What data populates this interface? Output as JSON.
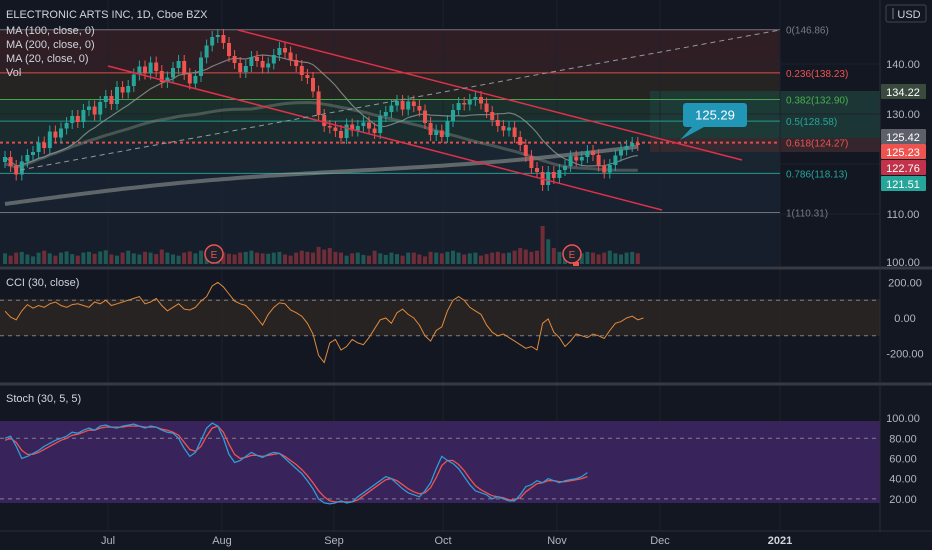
{
  "header": {
    "symbol_line": "ELECTRONIC ARTS INC, 1D, Cboe BZX",
    "indicators": [
      "MA (100, close, 0)",
      "MA (200, close, 0)",
      "MA (20, close, 0)",
      "Vol"
    ],
    "currency": "USD"
  },
  "colors": {
    "up": "#26a69a",
    "down": "#ef5350",
    "ma_long": "#9aa09a",
    "ma_mid": "#7a7f7a",
    "channel": "#e0304a",
    "cci": "#e08a3c",
    "stoch_k": "#2f9bd6",
    "stoch_d": "#ef5350",
    "stoch_band": "#4a2a7a",
    "tooltip": "#2196b6"
  },
  "chart_data": [
    {
      "type": "candlestick",
      "title": "ELECTRONIC ARTS INC, 1D, Cboe BZX",
      "x_tick_labels": [
        "Jul",
        "Aug",
        "Sep",
        "Oct",
        "Nov",
        "Dec",
        "2021"
      ],
      "y_tick_labels": [
        "140.00",
        "130.00",
        "120.00",
        "110.00",
        "100.00"
      ],
      "ylim": [
        100,
        148
      ],
      "closes": [
        121.4,
        119.6,
        117.9,
        120.5,
        121.8,
        122.4,
        124.3,
        123.2,
        126.5,
        125.3,
        127.1,
        128.2,
        129.6,
        128.4,
        130.8,
        131.5,
        129.9,
        132.4,
        133.6,
        132.0,
        135.4,
        134.3,
        135.6,
        137.9,
        139.5,
        138.1,
        140.3,
        138.6,
        136.4,
        137.3,
        139.2,
        140.6,
        138.0,
        136.1,
        137.6,
        141.3,
        143.7,
        145.4,
        145.8,
        144.2,
        141.6,
        140.2,
        138.4,
        139.6,
        141.4,
        140.6,
        139.3,
        140.1,
        141.8,
        143.2,
        142.3,
        140.8,
        139.6,
        137.8,
        137.2,
        134.5,
        129.8,
        127.6,
        127.3,
        126.6,
        125.2,
        127.9,
        126.7,
        127.6,
        128.3,
        127.1,
        126.2,
        129.6,
        130.4,
        131.7,
        132.6,
        130.9,
        132.5,
        131.6,
        130.7,
        128.2,
        125.8,
        126.7,
        125.4,
        128.6,
        130.8,
        132.2,
        131.9,
        132.8,
        133.4,
        132.1,
        130.4,
        128.8,
        127.6,
        126.7,
        127.3,
        125.4,
        123.8,
        121.6,
        119.2,
        118.4,
        115.8,
        118.4,
        117.2,
        118.8,
        119.6,
        121.5,
        120.7,
        121.4,
        122.6,
        121.8,
        119.7,
        118.3,
        119.8,
        121.7,
        122.9,
        123.6,
        124.2,
        123.8
      ],
      "volume_relative": [
        0.28,
        0.22,
        0.3,
        0.32,
        0.25,
        0.2,
        0.3,
        0.35,
        0.28,
        0.22,
        0.3,
        0.33,
        0.26,
        0.22,
        0.3,
        0.32,
        0.27,
        0.33,
        0.36,
        0.25,
        0.22,
        0.3,
        0.35,
        0.28,
        0.25,
        0.32,
        0.3,
        0.26,
        0.38,
        0.3,
        0.25,
        0.22,
        0.3,
        0.33,
        0.28,
        0.35,
        0.3,
        0.32,
        0.38,
        0.3,
        0.27,
        0.25,
        0.3,
        0.32,
        0.35,
        0.3,
        0.28,
        0.27,
        0.3,
        0.32,
        0.25,
        0.22,
        0.3,
        0.35,
        0.32,
        0.3,
        0.45,
        0.38,
        0.42,
        0.32,
        0.3,
        0.22,
        0.28,
        0.3,
        0.24,
        0.22,
        0.35,
        0.28,
        0.24,
        0.3,
        0.26,
        0.22,
        0.3,
        0.3,
        0.25,
        0.2,
        0.32,
        0.3,
        0.28,
        0.32,
        0.35,
        0.3,
        0.25,
        0.28,
        0.3,
        0.22,
        0.26,
        0.3,
        0.32,
        0.28,
        0.3,
        0.35,
        0.42,
        0.38,
        0.32,
        0.35,
        1.0,
        0.65,
        0.42,
        0.32,
        0.35,
        0.25,
        0.3,
        0.28,
        0.32,
        0.3,
        0.25,
        0.3,
        0.35,
        0.28,
        0.25,
        0.3,
        0.32,
        0.28
      ],
      "earnings_markers": [
        "E",
        "E"
      ],
      "fibonacci": [
        {
          "label": "0(146.86)",
          "value": 146.86
        },
        {
          "label": "0.236(138.23)",
          "value": 138.23
        },
        {
          "label": "0.382(132.90)",
          "value": 132.9
        },
        {
          "label": "0.5(128.58)",
          "value": 128.58
        },
        {
          "label": "0.618(124.27)",
          "value": 124.27
        },
        {
          "label": "0.786(118.13)",
          "value": 118.13
        },
        {
          "label": "1(110.31)",
          "value": 110.31
        }
      ],
      "price_labels": [
        {
          "text": "134.22",
          "value": 134.22,
          "bg": "#3a4a3e"
        },
        {
          "text": "125.42",
          "value": 125.42,
          "bg": "#5d606b"
        },
        {
          "text": "125.23",
          "value": 125.23,
          "bg": "#ef5350"
        },
        {
          "text": "122.76",
          "value": 122.76,
          "bg": "#c2324a"
        },
        {
          "text": "121.51",
          "value": 121.51,
          "bg": "#26a69a"
        }
      ],
      "annotation": "125.29"
    },
    {
      "type": "line",
      "title": "CCI (30, close)",
      "y_tick_labels": [
        "200.00",
        "0.00",
        "-200.00"
      ],
      "ylim": [
        -280,
        220
      ],
      "bands": [
        100,
        -100
      ],
      "values": [
        38,
        5,
        -10,
        40,
        75,
        55,
        70,
        60,
        80,
        90,
        70,
        60,
        75,
        80,
        70,
        60,
        90,
        80,
        100,
        70,
        80,
        90,
        100,
        110,
        120,
        80,
        90,
        110,
        70,
        40,
        60,
        80,
        50,
        45,
        60,
        95,
        120,
        180,
        200,
        175,
        135,
        95,
        80,
        70,
        40,
        0,
        -40,
        20,
        60,
        85,
        80,
        45,
        30,
        10,
        -30,
        -90,
        -210,
        -250,
        -140,
        -120,
        -180,
        -160,
        -120,
        -140,
        -150,
        -110,
        -60,
        -10,
        0,
        -30,
        30,
        50,
        20,
        0,
        -40,
        -100,
        -130,
        -70,
        -50,
        40,
        100,
        120,
        100,
        60,
        40,
        20,
        -40,
        -80,
        -100,
        -90,
        -110,
        -130,
        -150,
        -170,
        -160,
        -180,
        -30,
        -5,
        -80,
        -110,
        -160,
        -130,
        -90,
        -100,
        -110,
        -90,
        -100,
        -115,
        -70,
        -30,
        -20,
        0,
        10,
        -10,
        0
      ]
    },
    {
      "type": "line",
      "title": "Stoch (30, 5, 5)",
      "y_tick_labels": [
        "100.00",
        "80.00",
        "60.00",
        "40.00",
        "20.00"
      ],
      "ylim": [
        5,
        105
      ],
      "bands": [
        80,
        20
      ],
      "series": [
        {
          "values": [
            80,
            82,
            72,
            60,
            62,
            65,
            68,
            72,
            75,
            78,
            80,
            82,
            86,
            85,
            88,
            90,
            88,
            92,
            93,
            91,
            90,
            92,
            93,
            94,
            92,
            90,
            92,
            91,
            88,
            86,
            85,
            80,
            70,
            62,
            66,
            78,
            90,
            95,
            92,
            80,
            64,
            56,
            58,
            62,
            66,
            63,
            61,
            64,
            66,
            65,
            60,
            55,
            50,
            45,
            38,
            30,
            20,
            16,
            15,
            16,
            18,
            16,
            17,
            22,
            26,
            30,
            34,
            38,
            42,
            40,
            35,
            30,
            26,
            24,
            22,
            28,
            36,
            50,
            62,
            58,
            55,
            50,
            42,
            34,
            28,
            26,
            24,
            20,
            22,
            20,
            18,
            18,
            24,
            32,
            34,
            38,
            36,
            40,
            38,
            36,
            38,
            39,
            40,
            42,
            46
          ]
        },
        {
          "values": [
            78,
            80,
            76,
            68,
            64,
            64,
            66,
            69,
            72,
            75,
            78,
            80,
            83,
            84,
            86,
            88,
            88,
            90,
            91,
            91,
            91,
            91,
            92,
            92,
            92,
            91,
            91,
            91,
            89,
            88,
            86,
            83,
            76,
            69,
            67,
            72,
            82,
            90,
            92,
            86,
            74,
            64,
            60,
            61,
            63,
            63,
            62,
            63,
            64,
            65,
            62,
            58,
            54,
            49,
            43,
            36,
            28,
            22,
            18,
            17,
            17,
            17,
            17,
            19,
            23,
            27,
            31,
            35,
            39,
            40,
            38,
            34,
            30,
            27,
            25,
            26,
            31,
            41,
            53,
            58,
            58,
            54,
            48,
            40,
            33,
            29,
            26,
            23,
            22,
            21,
            19,
            19,
            21,
            27,
            31,
            35,
            36,
            38,
            38,
            37,
            37,
            38,
            39,
            40,
            42
          ]
        }
      ]
    }
  ]
}
